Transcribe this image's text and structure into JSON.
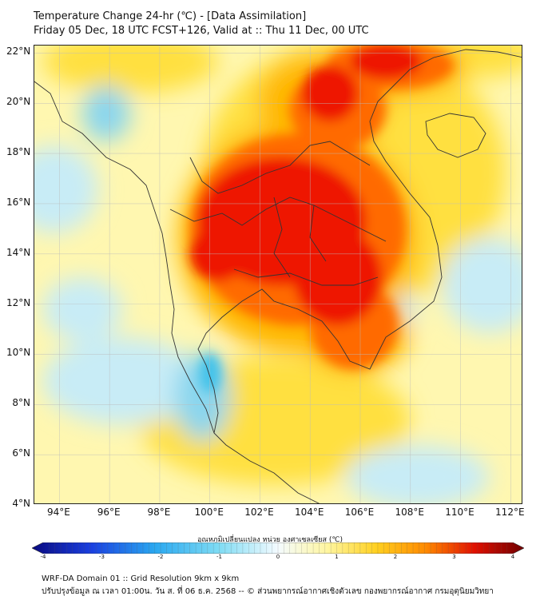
{
  "title": {
    "line1": "Temperature Change 24-hr (℃) - [Data Assimilation]",
    "line2": "Friday 05 Dec, 18 UTC FCST+126, Valid at :: Thu 11 Dec, 00 UTC"
  },
  "map": {
    "type": "heatmap",
    "lat_labels": [
      "22°N",
      "20°N",
      "18°N",
      "16°N",
      "14°N",
      "12°N",
      "10°N",
      "8°N",
      "6°N",
      "4°N"
    ],
    "lon_labels": [
      "94°E",
      "96°E",
      "98°E",
      "100°E",
      "102°E",
      "104°E",
      "106°E",
      "108°E",
      "110°E",
      "112°E"
    ],
    "lat_range": [
      4,
      22.3
    ],
    "lon_range": [
      93,
      112.5
    ],
    "grid": true
  },
  "colorbar": {
    "title": "อุณหภูมิเปลี่ยนแปลง หน่วย องศาเซลเซียส (℃)",
    "ticks": [
      "-4",
      "-3",
      "-2",
      "-1",
      "0",
      "1",
      "2",
      "3",
      "4"
    ],
    "range": [
      -4,
      4
    ]
  },
  "footer": {
    "line1": "WRF-DA Domain 01 :: Grid Resolution 9km x 9km",
    "line2": "ปรับปรุงข้อมูล ณ เวลา 01:00น. วัน ส. ที่ 06 ธ.ค. 2568 -- © ส่วนพยากรณ์อากาศเชิงตัวเลข กองพยากรณ์อากาศ กรมอุตุนิยมวิทยา"
  },
  "colors": {
    "hot_core": "#ee1200",
    "hot": "#ff6a00",
    "warm": "#ffb700",
    "mild": "#ffe040",
    "neutral": "#fff7b0",
    "cool_light": "#c8ecf6",
    "cool": "#8ad6ee",
    "cold": "#45c3ea"
  }
}
